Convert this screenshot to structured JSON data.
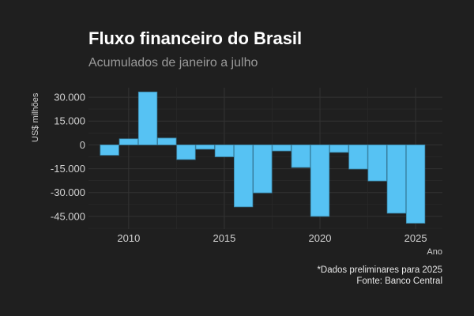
{
  "title": "Fluxo financeiro do Brasil",
  "subtitle": "Acumulados de janeiro a julho",
  "caption_lines": [
    "*Dados preliminares para 2025",
    "Fonte: Banco Central"
  ],
  "colors": {
    "background": "#1f1f1f",
    "bar": "#56c2f3",
    "bar_outline": "#3a86a8",
    "grid": "#2e2e2e",
    "text": "#d0d0d0"
  },
  "chart_data": {
    "type": "bar",
    "title": "Fluxo financeiro do Brasil",
    "subtitle": "Acumulados de janeiro a julho",
    "xlabel": "Ano",
    "ylabel": "US$ milhões",
    "x": [
      2009,
      2010,
      2011,
      2012,
      2013,
      2014,
      2015,
      2016,
      2017,
      2018,
      2019,
      2020,
      2021,
      2022,
      2023,
      2024,
      2025
    ],
    "values": [
      -6500,
      3800,
      33300,
      4300,
      -9200,
      -2700,
      -7500,
      -39000,
      -30200,
      -3800,
      -14200,
      -45000,
      -4700,
      -15200,
      -22700,
      -43000,
      -49300
    ],
    "xticks": [
      2010,
      2015,
      2020,
      2025
    ],
    "xtick_labels": [
      "2010",
      "2015",
      "2020",
      "2025"
    ],
    "yticks": [
      30000,
      15000,
      0,
      -15000,
      -30000,
      -45000
    ],
    "ytick_labels": [
      "30.000",
      "15.000",
      "0",
      "-15.000",
      "-30.000",
      "-45.000"
    ],
    "xlim": [
      2007.9,
      2026.4
    ],
    "ylim": [
      -53000,
      36000
    ],
    "grid": true,
    "legend": "none"
  }
}
